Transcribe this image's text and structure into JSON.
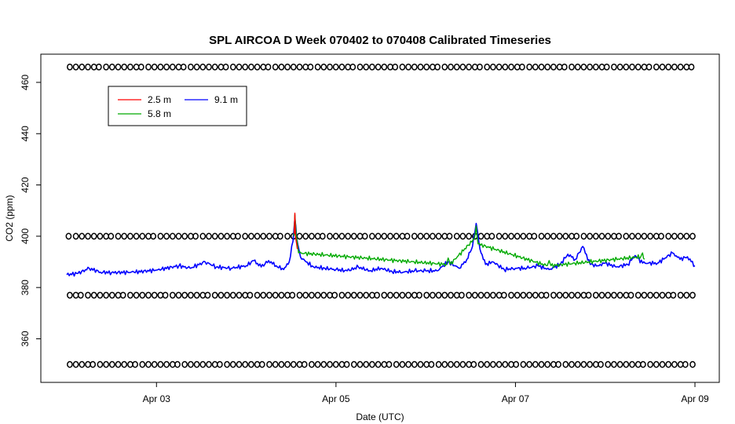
{
  "chart_data": {
    "type": "line",
    "title": "SPL AIRCOA D  Week 070402 to 070408  Calibrated Timeseries",
    "xlabel": "Date (UTC)",
    "ylabel": "CO2 (ppm)",
    "x_is_date": true,
    "xlim": [
      "2007-04-02",
      "2007-04-09"
    ],
    "ylim": [
      343,
      471
    ],
    "x_ticks": [
      {
        "value": "2007-04-03",
        "label": "Apr 03"
      },
      {
        "value": "2007-04-05",
        "label": "Apr 05"
      },
      {
        "value": "2007-04-07",
        "label": "Apr 07"
      },
      {
        "value": "2007-04-09",
        "label": "Apr 09"
      }
    ],
    "y_ticks": [
      360,
      380,
      400,
      420,
      440,
      460
    ],
    "grid": false,
    "legend": {
      "placement": "top-left",
      "entries": [
        {
          "name": "2.5 m",
          "color": "#ff0000"
        },
        {
          "name": "5.8 m",
          "color": "#00aa00"
        },
        {
          "name": "9.1 m",
          "color": "#0000ff"
        }
      ]
    },
    "series": [
      {
        "name": "9.1 m",
        "color": "#0000ff",
        "points": [
          [
            "2007-04-02 00:00",
            385.0
          ],
          [
            "2007-04-02 03:00",
            385.5
          ],
          [
            "2007-04-02 06:00",
            387.5
          ],
          [
            "2007-04-02 09:00",
            386.0
          ],
          [
            "2007-04-02 12:00",
            385.8
          ],
          [
            "2007-04-02 18:00",
            386.0
          ],
          [
            "2007-04-03 00:00",
            386.8
          ],
          [
            "2007-04-03 06:00",
            388.5
          ],
          [
            "2007-04-03 09:00",
            387.5
          ],
          [
            "2007-04-03 13:00",
            390.0
          ],
          [
            "2007-04-03 16:00",
            388.0
          ],
          [
            "2007-04-03 20:00",
            387.5
          ],
          [
            "2007-04-04 00:00",
            388.5
          ],
          [
            "2007-04-04 02:00",
            390.5
          ],
          [
            "2007-04-04 04:00",
            388.0
          ],
          [
            "2007-04-04 06:00",
            390.5
          ],
          [
            "2007-04-04 08:00",
            388.5
          ],
          [
            "2007-04-04 10:00",
            387.0
          ],
          [
            "2007-04-04 11:30",
            390.0
          ],
          [
            "2007-04-04 12:30",
            398.0
          ],
          [
            "2007-04-04 13:00",
            407.0
          ],
          [
            "2007-04-04 13:30",
            399.0
          ],
          [
            "2007-04-04 14:30",
            392.0
          ],
          [
            "2007-04-04 16:00",
            390.0
          ],
          [
            "2007-04-04 18:00",
            388.0
          ],
          [
            "2007-04-04 21:00",
            387.5
          ],
          [
            "2007-04-05 00:00",
            387.0
          ],
          [
            "2007-04-05 03:00",
            386.5
          ],
          [
            "2007-04-05 06:00",
            388.0
          ],
          [
            "2007-04-05 09:00",
            386.5
          ],
          [
            "2007-04-05 12:00",
            387.5
          ],
          [
            "2007-04-05 15:00",
            386.2
          ],
          [
            "2007-04-05 18:00",
            386.0
          ],
          [
            "2007-04-05 21:00",
            386.5
          ],
          [
            "2007-04-06 00:00",
            386.5
          ],
          [
            "2007-04-06 03:00",
            386.5
          ],
          [
            "2007-04-06 06:00",
            390.0
          ],
          [
            "2007-04-06 09:00",
            387.5
          ],
          [
            "2007-04-06 11:00",
            391.0
          ],
          [
            "2007-04-06 12:30",
            396.0
          ],
          [
            "2007-04-06 13:30",
            405.0
          ],
          [
            "2007-04-06 14:30",
            395.0
          ],
          [
            "2007-04-06 16:00",
            389.0
          ],
          [
            "2007-04-06 18:00",
            390.0
          ],
          [
            "2007-04-06 21:00",
            387.0
          ],
          [
            "2007-04-07 00:00",
            387.5
          ],
          [
            "2007-04-07 03:00",
            387.5
          ],
          [
            "2007-04-07 06:00",
            388.5
          ],
          [
            "2007-04-07 09:00",
            387.0
          ],
          [
            "2007-04-07 12:00",
            389.0
          ],
          [
            "2007-04-07 14:00",
            393.0
          ],
          [
            "2007-04-07 16:00",
            391.0
          ],
          [
            "2007-04-07 18:00",
            396.0
          ],
          [
            "2007-04-07 20:00",
            389.0
          ],
          [
            "2007-04-07 22:00",
            388.5
          ],
          [
            "2007-04-08 00:00",
            389.5
          ],
          [
            "2007-04-08 03:00",
            388.0
          ],
          [
            "2007-04-08 06:00",
            389.0
          ],
          [
            "2007-04-08 08:00",
            392.5
          ],
          [
            "2007-04-08 10:00",
            389.5
          ],
          [
            "2007-04-08 14:00",
            389.5
          ],
          [
            "2007-04-08 18:00",
            393.5
          ],
          [
            "2007-04-08 20:00",
            391.0
          ],
          [
            "2007-04-08 22:00",
            392.0
          ],
          [
            "2007-04-09 00:00",
            388.5
          ]
        ]
      },
      {
        "name": "5.8 m",
        "color": "#00aa00",
        "points": [
          [
            "2007-04-04 12:45",
            400.0
          ],
          [
            "2007-04-04 13:00",
            408.5
          ],
          [
            "2007-04-04 13:20",
            401.0
          ],
          [
            "2007-04-04 14:00",
            393.5
          ],
          [
            "2007-04-06 05:30",
            389.0
          ],
          [
            "2007-04-06 06:00",
            391.5
          ],
          [
            "2007-04-06 06:30",
            389.0
          ],
          [
            "2007-04-06 13:00",
            399.0
          ],
          [
            "2007-04-06 13:30",
            404.0
          ],
          [
            "2007-04-06 14:00",
            397.0
          ],
          [
            "2007-04-07 08:30",
            388.5
          ],
          [
            "2007-04-07 09:00",
            390.5
          ],
          [
            "2007-04-07 09:30",
            388.5
          ],
          [
            "2007-04-08 09:30",
            392.0
          ],
          [
            "2007-04-08 10:00",
            393.5
          ],
          [
            "2007-04-08 10:30",
            391.0
          ]
        ]
      },
      {
        "name": "2.5 m",
        "color": "#ff0000",
        "points": [
          [
            "2007-04-04 12:50",
            401.0
          ],
          [
            "2007-04-04 13:00",
            409.0
          ],
          [
            "2007-04-04 13:10",
            400.0
          ],
          [
            "2007-04-04 13:40",
            395.0
          ]
        ]
      }
    ],
    "marker_rows": [
      {
        "y": 466
      },
      {
        "y": 400
      },
      {
        "y": 377
      },
      {
        "y": 350
      }
    ]
  }
}
